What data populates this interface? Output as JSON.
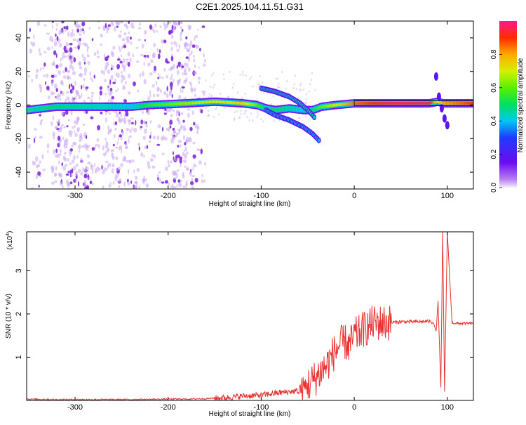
{
  "title": "C2E1.2025.104.11.51.G31",
  "colors": {
    "snr_line": "#e83232",
    "ridge_core": "#d9304a",
    "scatter": "#7a1fd6"
  },
  "colorbar": {
    "label": "Normalized spectral amplitude",
    "ticks": [
      "0.0",
      "0.2",
      "0.4",
      "0.6",
      "0.8"
    ],
    "range": [
      0,
      1
    ]
  },
  "chart_data": [
    {
      "type": "heatmap",
      "xlabel": "Height of straight line (km)",
      "ylabel": "Frequency (Hz)",
      "xlim": [
        -352,
        128
      ],
      "ylim": [
        -50,
        50
      ],
      "xticks": [
        "-300",
        "-200",
        "-100",
        "0",
        "100"
      ],
      "xtick_values": [
        -300,
        -200,
        -100,
        0,
        100
      ],
      "yticks": [
        "40",
        "20",
        "0",
        "-20",
        "-40"
      ],
      "ytick_values": [
        40,
        20,
        0,
        -20,
        -40
      ],
      "ridge": {
        "x": [
          -352,
          -320,
          -280,
          -240,
          -220,
          -180,
          -150,
          -120,
          -105,
          -95,
          -85,
          -70,
          -55,
          -45,
          -40,
          -35,
          -20,
          0,
          40,
          80,
          90,
          95,
          128
        ],
        "y": [
          -3,
          -1,
          -1,
          -1,
          0,
          1,
          2,
          1,
          0,
          -2,
          -3,
          -2,
          -3,
          -3,
          -2,
          -1,
          0,
          1,
          1,
          1,
          2,
          1,
          1
        ],
        "amplitude": [
          0.45,
          0.5,
          0.45,
          0.4,
          0.55,
          0.65,
          0.7,
          0.75,
          0.6,
          0.45,
          0.5,
          0.45,
          0.4,
          0.45,
          0.55,
          0.6,
          0.7,
          0.85,
          0.95,
          0.95,
          0.7,
          0.8,
          0.9
        ]
      },
      "branches": [
        {
          "x": [
            -100,
            -85,
            -70,
            -58,
            -48,
            -42
          ],
          "y": [
            10,
            8,
            5,
            1,
            -4,
            -8
          ]
        },
        {
          "x": [
            -95,
            -85,
            -70,
            -55,
            -45,
            -38
          ],
          "y": [
            -3,
            -6,
            -9,
            -13,
            -17,
            -21
          ]
        }
      ],
      "spike": {
        "x": [
          88,
          91,
          94,
          97,
          100
        ],
        "y": [
          17,
          5,
          -2,
          -8,
          -12
        ]
      }
    },
    {
      "type": "line",
      "xlabel": "Height of straight line (km)",
      "ylabel": "SNR (10 * v/v)",
      "yscale_label": "(x10",
      "yscale_exp": "4",
      "yscale_close": ")",
      "xlim": [
        -352,
        128
      ],
      "ylim": [
        0,
        3.9
      ],
      "xticks": [
        "-300",
        "-200",
        "-100",
        "0",
        "100"
      ],
      "xtick_values": [
        -300,
        -200,
        -100,
        0,
        100
      ],
      "yticks": [
        "1",
        "2",
        "3"
      ],
      "ytick_values": [
        1,
        2,
        3
      ],
      "series": [
        {
          "x": [
            -352,
            -320,
            -280,
            -240,
            -200,
            -180,
            -160,
            -140,
            -120,
            -100,
            -90,
            -80,
            -70,
            -60,
            -50,
            -45,
            -40,
            -35,
            -30,
            -25,
            -20,
            -15,
            -10,
            -5,
            0,
            5,
            10,
            15,
            20,
            30,
            40,
            50,
            60,
            70,
            80,
            85,
            88,
            90,
            93,
            95,
            97,
            100,
            105,
            110,
            120,
            128
          ],
          "y": [
            0.03,
            0.02,
            0.02,
            0.02,
            0.03,
            0.03,
            0.04,
            0.06,
            0.1,
            0.12,
            0.15,
            0.18,
            0.2,
            0.22,
            0.35,
            0.45,
            0.55,
            0.7,
            0.8,
            1.0,
            1.15,
            1.3,
            1.35,
            1.25,
            1.5,
            1.55,
            1.65,
            1.7,
            1.78,
            1.8,
            1.8,
            1.82,
            1.82,
            1.82,
            1.83,
            1.8,
            1.6,
            2.3,
            0.3,
            3.9,
            0.2,
            3.9,
            1.8,
            1.78,
            1.78,
            1.78
          ]
        }
      ]
    }
  ]
}
